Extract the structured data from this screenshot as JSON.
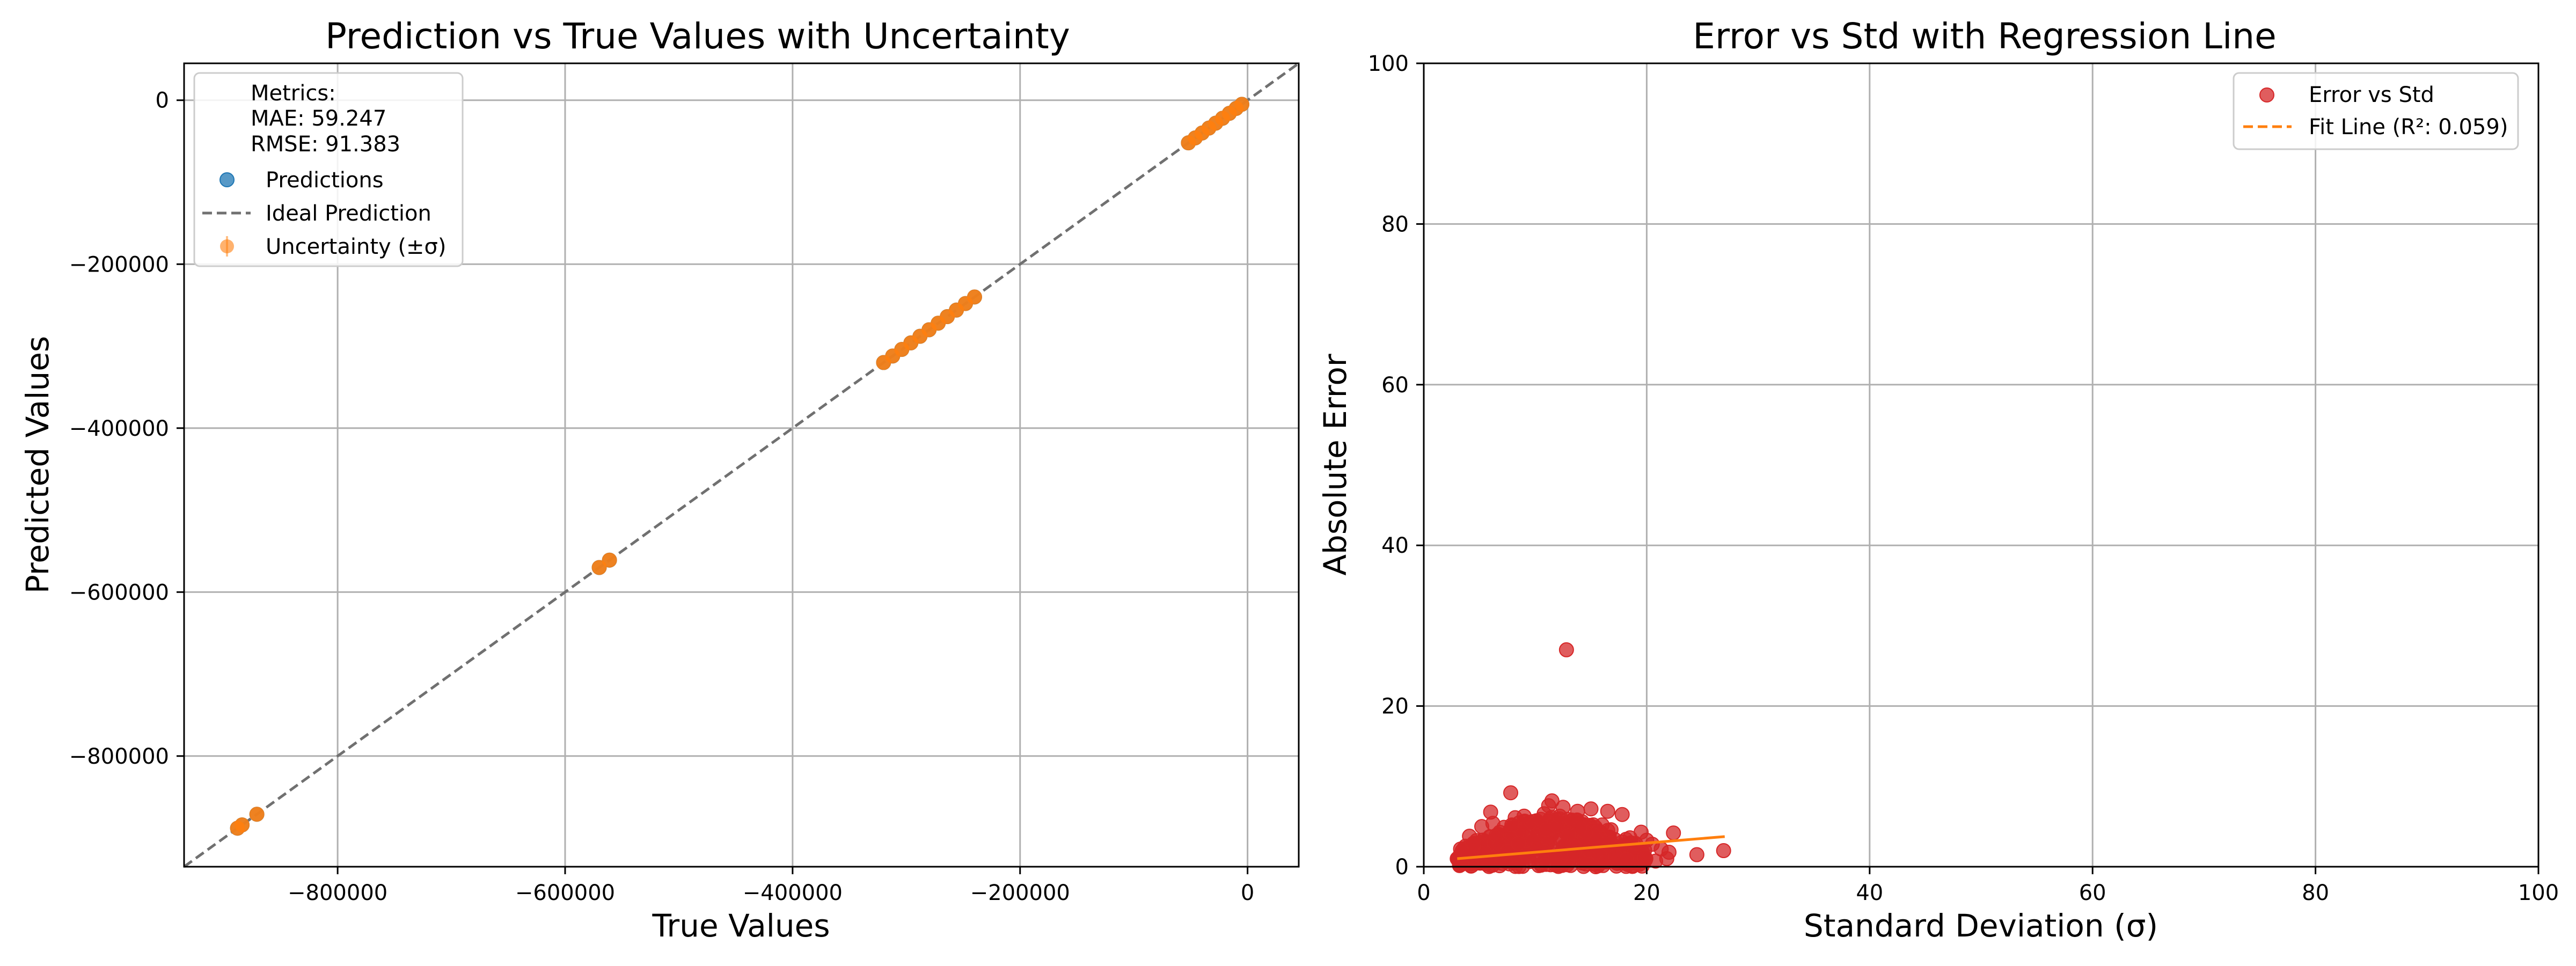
{
  "chart_data": [
    {
      "type": "scatter",
      "title": "Prediction vs True Values with Uncertainty",
      "xlabel": "True Values",
      "ylabel": "Predicted Values",
      "xlim": [
        -935000,
        45000
      ],
      "ylim": [
        -935000,
        45000
      ],
      "xticks": [
        -800000,
        -600000,
        -400000,
        -200000,
        0
      ],
      "yticks": [
        0,
        -200000,
        -400000,
        -600000,
        -800000
      ],
      "xtick_labels": [
        "−800000",
        "−600000",
        "−400000",
        "−200000",
        "0"
      ],
      "ytick_labels": [
        "0",
        "−200000",
        "−400000",
        "−600000",
        "−800000"
      ],
      "grid": true,
      "legend": {
        "placement": "upper-left",
        "metrics_lines": [
          "Metrics:",
          "MAE: 59.247",
          "RMSE: 91.383"
        ],
        "entries": [
          "Predictions",
          "Ideal Prediction",
          "Uncertainty (±σ)"
        ]
      },
      "ideal_line": {
        "name": "Ideal Prediction",
        "x": [
          -935000,
          45000
        ],
        "y": [
          -935000,
          45000
        ],
        "color": "#707070"
      },
      "series": [
        {
          "name": "Predictions",
          "color": "#1f77b4",
          "error_color": "#ff7f0e",
          "x": [
            -888000,
            -884000,
            -871000,
            -570000,
            -561000,
            -320000,
            -312000,
            -304000,
            -296000,
            -288000,
            -280000,
            -272000,
            -264000,
            -256000,
            -248000,
            -240000,
            -52000,
            -46000,
            -40000,
            -34000,
            -28000,
            -22000,
            -16000,
            -10000,
            -5000
          ],
          "y": [
            -888000,
            -884000,
            -871000,
            -570000,
            -561000,
            -320000,
            -312000,
            -304000,
            -296000,
            -288000,
            -280000,
            -272000,
            -264000,
            -256000,
            -248000,
            -240000,
            -52000,
            -46000,
            -40000,
            -34000,
            -28000,
            -22000,
            -16000,
            -10000,
            -5000
          ]
        }
      ]
    },
    {
      "type": "scatter",
      "title": "Error vs Std with Regression Line",
      "xlabel": "Standard Deviation (σ)",
      "ylabel": "Absolute Error",
      "xlim": [
        0,
        100
      ],
      "ylim": [
        0,
        100
      ],
      "xticks": [
        0,
        20,
        40,
        60,
        80,
        100
      ],
      "yticks": [
        0,
        20,
        40,
        60,
        80,
        100
      ],
      "grid": true,
      "legend": {
        "placement": "top-right",
        "entries": [
          "Error vs Std",
          "Fit Line (R²: 0.059)"
        ]
      },
      "series": [
        {
          "name": "Error vs Std",
          "color": "#d62728",
          "points": [
            [
              12.8,
              27.0
            ],
            [
              7.8,
              9.2
            ],
            [
              11.5,
              8.2
            ],
            [
              6.0,
              6.8
            ],
            [
              8.2,
              6.1
            ],
            [
              12.5,
              7.4
            ],
            [
              13.8,
              6.9
            ],
            [
              15.0,
              7.2
            ],
            [
              16.5,
              6.9
            ],
            [
              17.8,
              6.5
            ],
            [
              19.5,
              4.3
            ],
            [
              22.4,
              4.2
            ],
            [
              22.0,
              1.8
            ],
            [
              26.9,
              2.0
            ],
            [
              20.5,
              2.8
            ],
            [
              18.5,
              3.6
            ],
            [
              9.5,
              5.5
            ],
            [
              10.5,
              5.9
            ],
            [
              14.2,
              5.6
            ],
            [
              16.0,
              5.2
            ],
            [
              5.2,
              5.0
            ],
            [
              4.1,
              3.8
            ],
            [
              3.3,
              2.2
            ],
            [
              3.0,
              1.0
            ],
            [
              3.6,
              0.6
            ],
            [
              4.5,
              2.9
            ],
            [
              5.5,
              1.7
            ],
            [
              6.5,
              3.9
            ],
            [
              7.2,
              4.9
            ],
            [
              8.8,
              4.4
            ],
            [
              9.8,
              3.2
            ],
            [
              11.0,
              4.6
            ],
            [
              12.0,
              5.1
            ],
            [
              13.0,
              3.9
            ],
            [
              14.5,
              4.3
            ],
            [
              15.5,
              3.3
            ],
            [
              16.8,
              4.6
            ],
            [
              17.5,
              2.4
            ],
            [
              18.8,
              1.6
            ],
            [
              19.8,
              1.2
            ],
            [
              20.8,
              0.7
            ],
            [
              21.3,
              2.2
            ],
            [
              4.0,
              1.4
            ],
            [
              5.8,
              0.9
            ],
            [
              6.8,
              2.6
            ],
            [
              7.5,
              1.9
            ],
            [
              8.5,
              2.9
            ],
            [
              9.2,
              1.5
            ],
            [
              10.2,
              2.4
            ],
            [
              11.8,
              1.1
            ],
            [
              12.6,
              2.6
            ],
            [
              13.5,
              1.6
            ],
            [
              14.8,
              2.0
            ],
            [
              15.8,
              1.4
            ],
            [
              16.3,
              0.6
            ],
            [
              17.2,
              1.3
            ],
            [
              18.2,
              0.9
            ],
            [
              6.2,
              5.4
            ],
            [
              7.9,
              5.2
            ],
            [
              10.8,
              6.6
            ],
            [
              11.2,
              7.6
            ],
            [
              12.2,
              6.3
            ],
            [
              13.3,
              5.8
            ],
            [
              9.0,
              6.3
            ],
            [
              14.0,
              4.9
            ],
            [
              19.0,
              2.9
            ],
            [
              20.0,
              3.3
            ],
            [
              21.8,
              1.0
            ],
            [
              3.4,
              0.3
            ],
            [
              24.5,
              1.5
            ]
          ]
        }
      ],
      "fit_line": {
        "name": "Fit Line (R²: 0.059)",
        "color": "#ff7f0e",
        "x": [
          3.0,
          27.0
        ],
        "y": [
          1.0,
          3.75
        ]
      }
    }
  ]
}
